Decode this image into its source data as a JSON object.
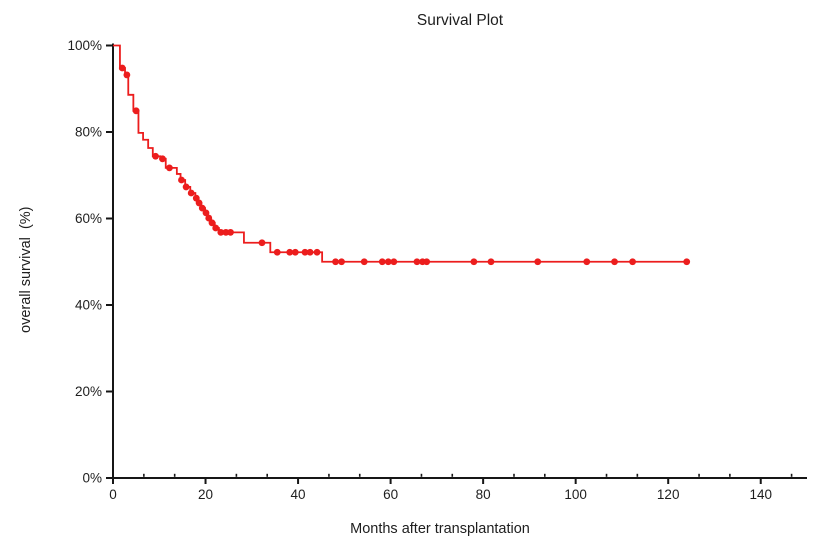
{
  "chart_data": {
    "type": "line",
    "subtype": "kaplan-meier-step",
    "title": "Survival Plot",
    "xlabel": "Months after transplantation",
    "ylabel": "overall survival  (%)",
    "xlim": [
      0,
      150
    ],
    "ylim": [
      0,
      100
    ],
    "grid": false,
    "legend": "none",
    "x_major_ticks": [
      0,
      20,
      40,
      60,
      80,
      100,
      120,
      140
    ],
    "x_minor_ticks": [
      6.67,
      13.33,
      26.67,
      33.33,
      46.67,
      53.33,
      66.67,
      73.33,
      86.67,
      93.33,
      106.67,
      113.33,
      126.67,
      133.33,
      146.67
    ],
    "y_major_ticks": [
      0,
      20,
      40,
      60,
      80,
      100
    ],
    "y_tick_suffix": "%",
    "axis_color": "#161616",
    "series": [
      {
        "name": "overall survival",
        "color": "#ec1d1d",
        "end_month": 124,
        "steps": [
          [
            0,
            100
          ],
          [
            1.5,
            94.8
          ],
          [
            2.6,
            93.2
          ],
          [
            3.3,
            88.6
          ],
          [
            4.4,
            84.9
          ],
          [
            5.5,
            79.8
          ],
          [
            6.5,
            78.2
          ],
          [
            7.6,
            76.3
          ],
          [
            8.6,
            74.4
          ],
          [
            10.2,
            73.8
          ],
          [
            11.4,
            71.7
          ],
          [
            13.8,
            70.3
          ],
          [
            14.6,
            68.9
          ],
          [
            15.6,
            67.3
          ],
          [
            16.7,
            65.9
          ],
          [
            17.8,
            64.7
          ],
          [
            18.4,
            63.6
          ],
          [
            19.1,
            62.4
          ],
          [
            19.9,
            61.3
          ],
          [
            20.5,
            60.1
          ],
          [
            21.2,
            59.0
          ],
          [
            22.0,
            57.8
          ],
          [
            22.9,
            56.8
          ],
          [
            28.3,
            54.4
          ],
          [
            34.0,
            52.2
          ],
          [
            45.2,
            50.0
          ]
        ],
        "censor_marks": [
          [
            2.0,
            94.8
          ],
          [
            3.0,
            93.2
          ],
          [
            5.0,
            84.9
          ],
          [
            9.2,
            74.4
          ],
          [
            10.7,
            73.8
          ],
          [
            12.2,
            71.7
          ],
          [
            14.8,
            68.9
          ],
          [
            15.8,
            67.3
          ],
          [
            16.9,
            65.9
          ],
          [
            18.0,
            64.7
          ],
          [
            18.6,
            63.6
          ],
          [
            19.3,
            62.4
          ],
          [
            20.1,
            61.3
          ],
          [
            20.7,
            60.1
          ],
          [
            21.4,
            59.0
          ],
          [
            22.2,
            57.8
          ],
          [
            23.3,
            56.8
          ],
          [
            24.4,
            56.8
          ],
          [
            25.4,
            56.8
          ],
          [
            32.2,
            54.4
          ],
          [
            35.5,
            52.2
          ],
          [
            38.2,
            52.2
          ],
          [
            39.4,
            52.2
          ],
          [
            41.5,
            52.2
          ],
          [
            42.6,
            52.2
          ],
          [
            44.1,
            52.2
          ],
          [
            48.1,
            50.0
          ],
          [
            49.4,
            50.0
          ],
          [
            54.3,
            50.0
          ],
          [
            58.2,
            50.0
          ],
          [
            59.5,
            50.0
          ],
          [
            60.7,
            50.0
          ],
          [
            65.7,
            50.0
          ],
          [
            66.9,
            50.0
          ],
          [
            67.8,
            50.0
          ],
          [
            78.0,
            50.0
          ],
          [
            81.7,
            50.0
          ],
          [
            91.8,
            50.0
          ],
          [
            102.4,
            50.0
          ],
          [
            108.4,
            50.0
          ],
          [
            112.3,
            50.0
          ],
          [
            124.0,
            50.0
          ]
        ]
      }
    ]
  }
}
